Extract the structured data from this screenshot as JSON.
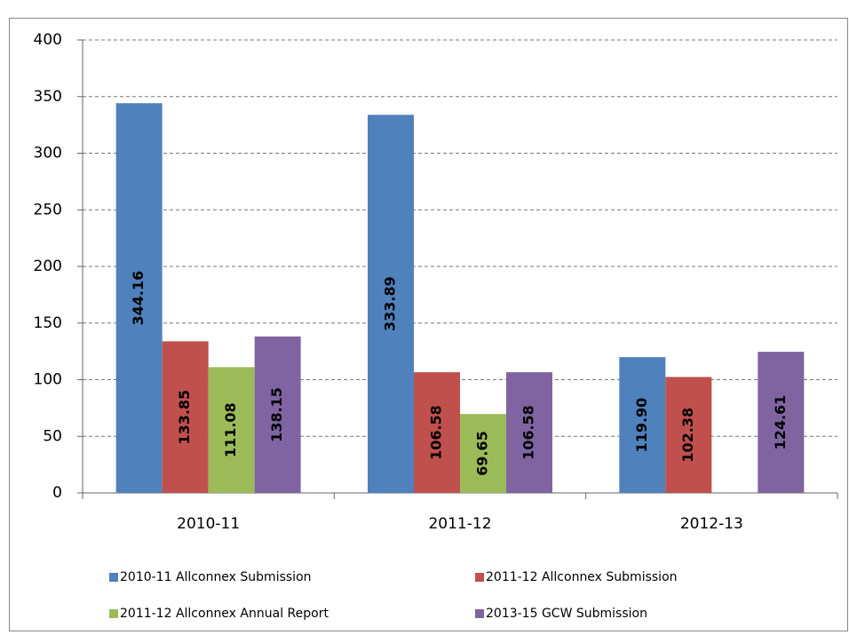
{
  "chart_data": {
    "type": "bar",
    "categories": [
      "2010-11",
      "2011-12",
      "2012-13"
    ],
    "series": [
      {
        "name": "2010-11 Allconnex Submission",
        "color": "#4f81bd",
        "values": [
          344.16,
          333.89,
          119.9
        ],
        "value_labels": [
          "344.16",
          "333.89",
          "119.90"
        ]
      },
      {
        "name": "2011-12 Allconnex Submission",
        "color": "#c0504d",
        "values": [
          133.85,
          106.58,
          102.38
        ],
        "value_labels": [
          "133.85",
          "106.58",
          "102.38"
        ]
      },
      {
        "name": "2011-12 Allconnex Annual Report",
        "color": "#9bbb59",
        "values": [
          111.08,
          69.65,
          null
        ],
        "value_labels": [
          "111.08",
          "69.65",
          null
        ]
      },
      {
        "name": "2013-15 GCW Submission",
        "color": "#8064a2",
        "values": [
          138.15,
          106.58,
          124.61
        ],
        "value_labels": [
          "138.15",
          "106.58",
          "124.61"
        ]
      }
    ],
    "ylim": [
      0,
      400
    ],
    "yticks": [
      0,
      50,
      100,
      150,
      200,
      250,
      300,
      350,
      400
    ],
    "grid": true,
    "legend": "bottom"
  }
}
